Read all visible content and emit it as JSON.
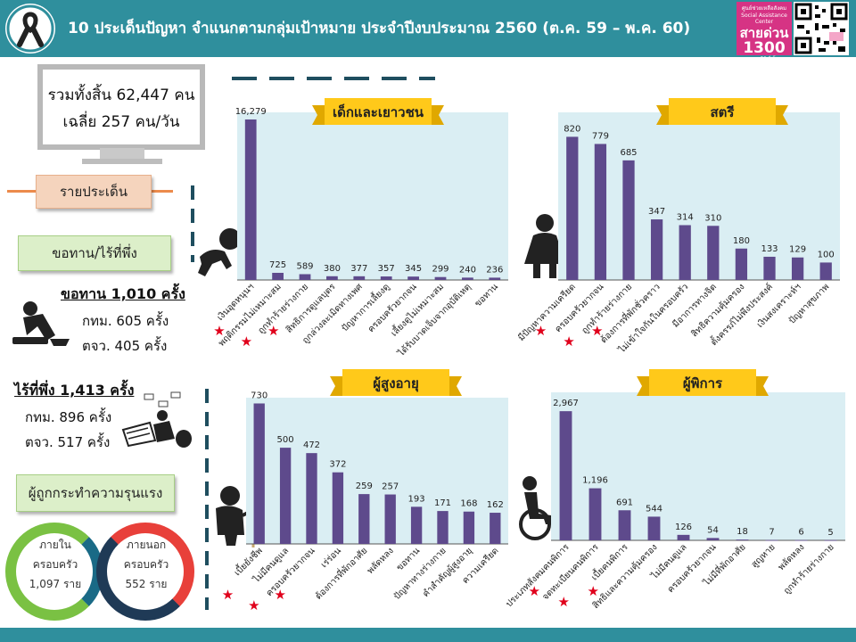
{
  "header": {
    "title": "10 ประเด็นปัญหา จำแนกตามกลุ่มเป้าหมาย ประจำปีงบประมาณ 2560  (ต.ค. 59 – พ.ค. 60)",
    "hotline_top": "ศูนย์ช่วยเหลือสังคม Social Assistance Center",
    "hotline_word": "สายด่วน",
    "hotline_number": "1300",
    "hotline_hours": "ตลอด 24 ชั่วโมง",
    "colors": {
      "header": "#2f8f9d",
      "bar": "#5e4a8c",
      "plot_bg": "#daeef3",
      "banner": "#ffc91a",
      "star": "#e0001b"
    }
  },
  "summary": {
    "total_line": "รวมทั้งสิ้น 62,447 คน",
    "avg_line": "เฉลี่ย 257 คน/วัน"
  },
  "sidebar": {
    "by_issue": "รายประเด็น",
    "begging_label": "ขอทาน/ไร้ที่พึ่ง",
    "begging_total": "ขอทาน 1,010 ครั้ง",
    "begging_bkk": "กทม. 605 ครั้ง",
    "begging_prov": "ตจว. 405 ครั้ง",
    "homeless_total": "ไร้ที่พึ่ง 1,413 ครั้ง",
    "homeless_bkk": "กทม. 896 ครั้ง",
    "homeless_prov": "ตจว. 517 ครั้ง",
    "violence_label": "ผู้ถูกกระทำความรุนแรง",
    "inside_label1": "ภายใน",
    "inside_label2": "ครอบครัว",
    "inside_value": "1,097 ราย",
    "outside_label1": "ภายนอก",
    "outside_label2": "ครอบครัว",
    "outside_value": "552 ราย"
  },
  "chart_data": [
    {
      "type": "bar",
      "title": "เด็กและเยาวชน",
      "categories": [
        "เงินอุดหนุนฯ",
        "พฤติกรรมไม่เหมาะสม",
        "ถูกทำร้ายร่างกาย",
        "สิทธิการดูแลบุตร",
        "ถูกล่วงละเมิดทางเพศ",
        "ปัญหาการเลี้ยงดู",
        "ครอบครัวยากจน",
        "เลี้ยงดูไม่เหมาะสม",
        "ได้รับบาดเจ็บจากอุบัติเหตุ",
        "ขอทาน"
      ],
      "values": [
        16279,
        725,
        589,
        380,
        377,
        357,
        345,
        299,
        240,
        236
      ],
      "value_labels": [
        "16,279",
        "725",
        "589",
        "380",
        "377",
        "357",
        "345",
        "299",
        "240",
        "236"
      ],
      "starred": [
        0,
        1,
        2
      ],
      "ylim": [
        0,
        17000
      ]
    },
    {
      "type": "bar",
      "title": "สตรี",
      "categories": [
        "มีปัญหาความเครียด",
        "ครอบครัวยากจน",
        "ถูกทำร้ายร่างกาย",
        "ต้องการที่พักชั่วคราว",
        "ไม่เข้าใจกันในครอบครัว",
        "มีอาการทางจิต",
        "สิทธิความคุ้มครอง",
        "ตั้งครรภ์ไม่พึงประสงค์",
        "เงินสงเคราะห์ฯ",
        "ปัญหาสุขภาพ"
      ],
      "values": [
        820,
        779,
        685,
        347,
        314,
        310,
        180,
        133,
        129,
        100
      ],
      "value_labels": [
        "820",
        "779",
        "685",
        "347",
        "314",
        "310",
        "180",
        "133",
        "129",
        "100"
      ],
      "starred": [
        0,
        1,
        2
      ],
      "ylim": [
        0,
        960
      ]
    },
    {
      "type": "bar",
      "title": "ผู้สูงอายุ",
      "categories": [
        "เบี้ยยังชีพ",
        "ไม่มีคนดูแล",
        "ครอบครัวยากจน",
        "เร่ร่อน",
        "ต้องการที่พักอาศัย",
        "พลัดหลง",
        "ขอทาน",
        "ปัญหาทางร่างกาย",
        "คำสำคัญผู้สูงอายุ",
        "ความเครียด"
      ],
      "values": [
        730,
        500,
        472,
        372,
        259,
        257,
        193,
        171,
        168,
        162
      ],
      "value_labels": [
        "730",
        "500",
        "472",
        "372",
        "259",
        "257",
        "193",
        "171",
        "168",
        "162"
      ],
      "starred": [
        0,
        1,
        2
      ],
      "ylim": [
        0,
        760
      ]
    },
    {
      "type": "bar",
      "title": "ผู้พิการ",
      "categories": [
        "ประเภทสังคมคนพิการ",
        "จดทะเบียนคนพิการ",
        "เบี้ยคนพิการ",
        "สิทธิและความคุ้มครอง",
        "ไม่มีคนดูแล",
        "ครอบครัวยากจน",
        "ไม่มีที่พักอาศัย",
        "สูญหาย",
        "พลัดหลง",
        "ถูกทำร้ายร่างกาย"
      ],
      "values": [
        2967,
        1196,
        691,
        544,
        126,
        54,
        18,
        7,
        6,
        5
      ],
      "value_labels": [
        "2,967",
        "1,196",
        "691",
        "544",
        "126",
        "54",
        "18",
        "7",
        "6",
        "5"
      ],
      "starred": [
        0,
        1,
        2
      ],
      "ylim": [
        0,
        3400
      ]
    }
  ]
}
